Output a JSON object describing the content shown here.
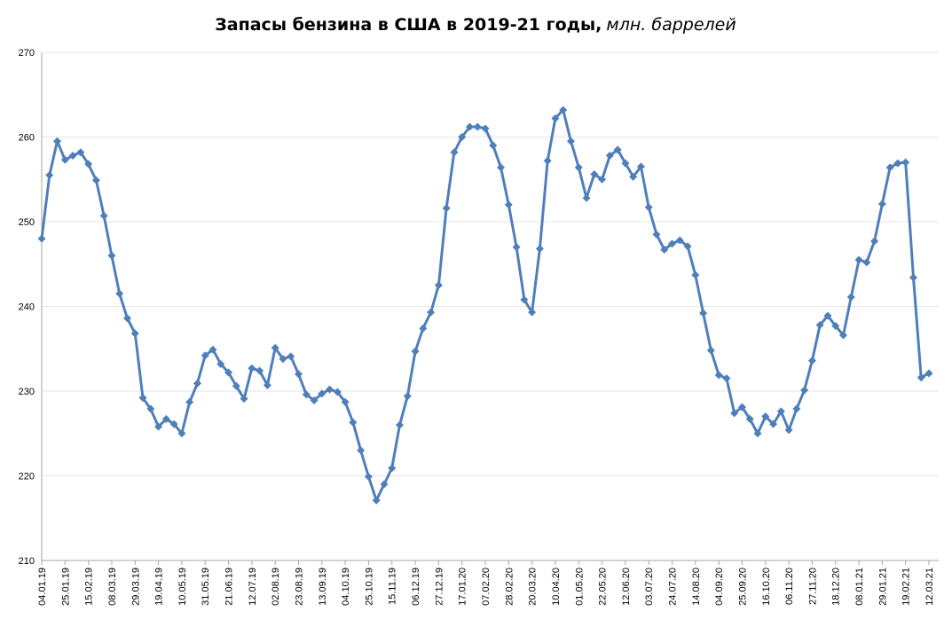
{
  "chart_data": {
    "type": "line",
    "title": "Запасы бензина в США в 2019-21 годы,",
    "subtitle": "млн. баррелей",
    "xlabel": "",
    "ylabel": "",
    "ylim": [
      210,
      270
    ],
    "yticks": [
      210,
      220,
      230,
      240,
      250,
      260,
      270
    ],
    "grid": true,
    "legend": "none",
    "colors": {
      "series": "#4f7fba",
      "grid": "#e6e6e6",
      "axis": "#a6a6a6"
    },
    "x_tick_labels": [
      "04.01.19",
      "25.01.19",
      "15.02.19",
      "08.03.19",
      "29.03.19",
      "19.04.19",
      "10.05.19",
      "31.05.19",
      "21.06.19",
      "12.07.19",
      "02.08.19",
      "23.08.19",
      "13.09.19",
      "04.10.19",
      "25.10.19",
      "15.11.19",
      "06.12.19",
      "27.12.19",
      "17.01.20",
      "07.02.20",
      "28.02.20",
      "20.03.20",
      "10.04.20",
      "01.05.20",
      "22.05.20",
      "12.06.20",
      "03.07.20",
      "24.07.20",
      "14.08.20",
      "04.09.20",
      "25.09.20",
      "16.10.20",
      "06.11.20",
      "27.11.20",
      "18.12.20",
      "08.01.21",
      "29.01.21",
      "19.02.21",
      "12.03.21"
    ],
    "x_tick_every": 3,
    "series": [
      {
        "values": [
          248.0,
          255.5,
          259.5,
          257.3,
          257.8,
          258.2,
          256.8,
          254.9,
          250.7,
          246.0,
          241.5,
          238.6,
          236.8,
          229.2,
          227.9,
          225.8,
          226.7,
          226.1,
          225.0,
          228.7,
          230.9,
          234.2,
          234.9,
          233.2,
          232.2,
          230.6,
          229.1,
          232.7,
          232.4,
          230.7,
          235.1,
          233.8,
          234.1,
          232.0,
          229.6,
          228.9,
          229.7,
          230.2,
          229.9,
          228.7,
          226.3,
          223.0,
          219.9,
          217.1,
          219.0,
          220.9,
          226.0,
          229.4,
          234.7,
          237.4,
          239.3,
          242.5,
          251.6,
          258.2,
          260.0,
          261.2,
          261.2,
          261.0,
          259.0,
          256.4,
          252.0,
          247.0,
          240.8,
          239.3,
          246.8,
          257.2,
          262.2,
          263.2,
          259.5,
          256.4,
          252.8,
          255.6,
          255.0,
          257.8,
          258.5,
          256.9,
          255.3,
          256.5,
          251.7,
          248.5,
          246.7,
          247.4,
          247.8,
          247.1,
          243.7,
          239.2,
          234.8,
          231.9,
          231.5,
          227.4,
          228.1,
          226.7,
          225.0,
          227.0,
          226.1,
          227.6,
          225.4,
          227.9,
          230.1,
          233.6,
          237.8,
          238.9,
          237.7,
          236.6,
          241.1,
          245.5,
          245.2,
          247.7,
          252.1,
          256.4,
          256.9,
          257.0,
          243.4,
          231.6,
          232.1
        ]
      }
    ]
  }
}
